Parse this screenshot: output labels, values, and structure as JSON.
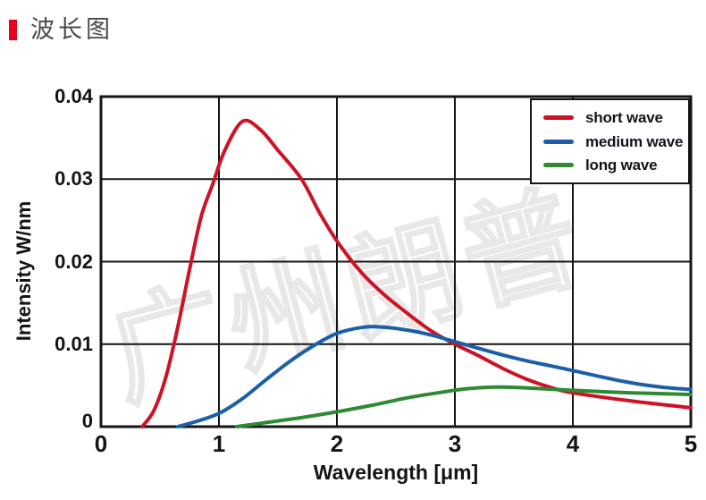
{
  "header": {
    "title": "波长图"
  },
  "watermark": {
    "text": "广州朗普"
  },
  "chart_data": {
    "type": "line",
    "title": "",
    "xlabel": "Wavelength [μm]",
    "ylabel": "Intensity W/nm",
    "xlim": [
      0,
      5
    ],
    "ylim": [
      0,
      0.04
    ],
    "xticks": [
      0,
      1,
      2,
      3,
      4,
      5
    ],
    "xtick_labels": [
      "0",
      "1",
      "2",
      "3",
      "4",
      "5"
    ],
    "yticks": [
      0,
      0.01,
      0.02,
      0.03,
      0.04
    ],
    "ytick_labels": [
      "0",
      "0.01",
      "0.02",
      "0.03",
      "0.04"
    ],
    "grid": true,
    "grid_color": "#141414",
    "legend_position": "top-right",
    "series": [
      {
        "name": "short wave",
        "color": "#cd1225",
        "points": [
          [
            0.35,
            0
          ],
          [
            0.45,
            0.002
          ],
          [
            0.55,
            0.006
          ],
          [
            0.65,
            0.012
          ],
          [
            0.75,
            0.019
          ],
          [
            0.85,
            0.0255
          ],
          [
            0.95,
            0.0295
          ],
          [
            1.05,
            0.0335
          ],
          [
            1.2,
            0.037
          ],
          [
            1.35,
            0.036
          ],
          [
            1.5,
            0.0335
          ],
          [
            1.7,
            0.03
          ],
          [
            1.85,
            0.026
          ],
          [
            2.0,
            0.0225
          ],
          [
            2.2,
            0.0188
          ],
          [
            2.4,
            0.016
          ],
          [
            2.6,
            0.0137
          ],
          [
            2.8,
            0.0116
          ],
          [
            3.0,
            0.01
          ],
          [
            3.2,
            0.0086
          ],
          [
            3.4,
            0.0071
          ],
          [
            3.6,
            0.0058
          ],
          [
            3.8,
            0.0048
          ],
          [
            4.0,
            0.0041
          ],
          [
            4.5,
            0.0031
          ],
          [
            5.0,
            0.0023
          ]
        ]
      },
      {
        "name": "medium wave",
        "color": "#1b5fa8",
        "points": [
          [
            0.65,
            0
          ],
          [
            0.8,
            0.0006
          ],
          [
            1.0,
            0.0016
          ],
          [
            1.2,
            0.0034
          ],
          [
            1.4,
            0.0057
          ],
          [
            1.6,
            0.0079
          ],
          [
            1.8,
            0.0098
          ],
          [
            2.0,
            0.0113
          ],
          [
            2.2,
            0.012
          ],
          [
            2.35,
            0.0121
          ],
          [
            2.6,
            0.0117
          ],
          [
            2.8,
            0.0111
          ],
          [
            3.0,
            0.0103
          ],
          [
            3.2,
            0.0095
          ],
          [
            3.4,
            0.0087
          ],
          [
            3.6,
            0.008
          ],
          [
            3.8,
            0.0074
          ],
          [
            4.0,
            0.0068
          ],
          [
            4.25,
            0.006
          ],
          [
            4.5,
            0.0053
          ],
          [
            4.75,
            0.0048
          ],
          [
            5.0,
            0.0045
          ]
        ]
      },
      {
        "name": "long wave",
        "color": "#2d8a32",
        "points": [
          [
            1.15,
            0
          ],
          [
            1.4,
            0.0005
          ],
          [
            1.7,
            0.0011
          ],
          [
            2.0,
            0.0018
          ],
          [
            2.3,
            0.0026
          ],
          [
            2.6,
            0.0035
          ],
          [
            2.9,
            0.0042
          ],
          [
            3.1,
            0.0046
          ],
          [
            3.35,
            0.0048
          ],
          [
            3.6,
            0.0047
          ],
          [
            4.0,
            0.0044
          ],
          [
            4.5,
            0.0041
          ],
          [
            5.0,
            0.0039
          ]
        ]
      }
    ]
  }
}
